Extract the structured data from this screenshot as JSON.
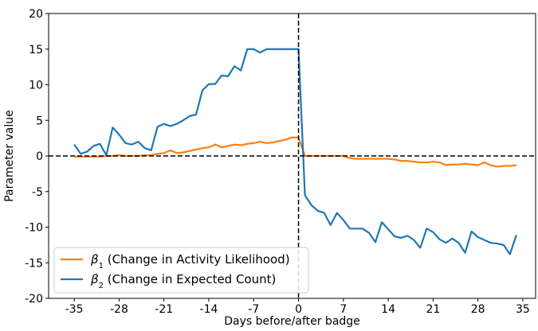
{
  "chart_data": {
    "type": "line",
    "xlabel": "Days before/after badge",
    "ylabel": "Parameter value",
    "xlim": [
      -39,
      37
    ],
    "ylim": [
      -20,
      20
    ],
    "xticks": [
      -35,
      -28,
      -21,
      -14,
      -7,
      0,
      7,
      14,
      21,
      28,
      35
    ],
    "yticks": [
      -20,
      -15,
      -10,
      -5,
      0,
      5,
      10,
      15,
      20
    ],
    "grid": false,
    "legend_position": "lower-left",
    "reference_lines": {
      "horizontal_y": 0,
      "vertical_x": 0,
      "style": "dashed"
    },
    "series": [
      {
        "name": "β1 (Change in Activity Likelihood)",
        "legend_symbol": "β",
        "legend_subscript": "1",
        "legend_rest": " (Change in Activity Likelihood)",
        "color": "#ff7f0e",
        "x": [
          -35,
          -34,
          -33,
          -32,
          -31,
          -30,
          -29,
          -28,
          -27,
          -26,
          -25,
          -24,
          -23,
          -22,
          -21,
          -20,
          -19,
          -18,
          -17,
          -16,
          -15,
          -14,
          -13,
          -12,
          -11,
          -10,
          -9,
          -8,
          -7,
          -6,
          -5,
          -4,
          -3,
          -2,
          -1,
          0,
          1,
          2,
          3,
          4,
          5,
          6,
          7,
          8,
          9,
          10,
          11,
          12,
          13,
          14,
          15,
          16,
          17,
          18,
          19,
          20,
          21,
          22,
          23,
          24,
          25,
          26,
          27,
          28,
          29,
          30,
          31,
          32,
          33,
          34
        ],
        "y": [
          -0.1,
          -0.1,
          -0.1,
          -0.1,
          -0.1,
          0.0,
          0.0,
          0.1,
          0.0,
          0.0,
          0.0,
          0.1,
          0.1,
          0.3,
          0.4,
          0.8,
          0.4,
          0.5,
          0.7,
          0.9,
          1.1,
          1.2,
          1.6,
          1.2,
          1.4,
          1.6,
          1.5,
          1.7,
          1.8,
          2.0,
          1.8,
          1.9,
          2.1,
          2.3,
          2.6,
          2.6,
          0.0,
          0.0,
          0.0,
          0.0,
          0.0,
          0.0,
          0.0,
          -0.3,
          -0.4,
          -0.4,
          -0.4,
          -0.4,
          -0.4,
          -0.4,
          -0.5,
          -0.7,
          -0.7,
          -0.8,
          -0.9,
          -0.9,
          -0.8,
          -0.9,
          -1.3,
          -1.2,
          -1.2,
          -1.1,
          -1.2,
          -1.3,
          -0.9,
          -1.3,
          -1.5,
          -1.4,
          -1.4,
          -1.3
        ]
      },
      {
        "name": "β2 (Change in Expected Count)",
        "legend_symbol": "β",
        "legend_subscript": "2",
        "legend_rest": " (Change in Expected Count)",
        "color": "#1f77b4",
        "x": [
          -35,
          -34,
          -33,
          -32,
          -31,
          -30,
          -29,
          -28,
          -27,
          -26,
          -25,
          -24,
          -23,
          -22,
          -21,
          -20,
          -19,
          -18,
          -17,
          -16,
          -15,
          -14,
          -13,
          -12,
          -11,
          -10,
          -9,
          -8,
          -7,
          -6,
          -5,
          -4,
          -3,
          -2,
          -1,
          0,
          1,
          2,
          3,
          4,
          5,
          6,
          7,
          8,
          9,
          10,
          11,
          12,
          13,
          14,
          15,
          16,
          17,
          18,
          19,
          20,
          21,
          22,
          23,
          24,
          25,
          26,
          27,
          28,
          29,
          30,
          31,
          32,
          33,
          34
        ],
        "y": [
          1.6,
          0.3,
          0.6,
          1.4,
          1.7,
          0.1,
          4.0,
          3.0,
          1.8,
          1.6,
          2.0,
          1.1,
          0.8,
          4.1,
          4.5,
          4.2,
          4.5,
          5.0,
          5.6,
          5.8,
          9.2,
          10.1,
          10.1,
          11.3,
          11.2,
          12.6,
          12.0,
          15.0,
          15.0,
          14.5,
          15.0,
          15.0,
          15.0,
          15.0,
          15.0,
          15.0,
          -5.5,
          -6.9,
          -7.7,
          -8.0,
          -9.7,
          -8.0,
          -9.0,
          -10.2,
          -10.2,
          -10.2,
          -10.8,
          -12.1,
          -9.3,
          -10.3,
          -11.3,
          -11.5,
          -11.2,
          -11.8,
          -12.9,
          -10.2,
          -10.7,
          -11.7,
          -12.2,
          -11.6,
          -12.2,
          -13.6,
          -10.6,
          -11.4,
          -11.8,
          -12.2,
          -12.3,
          -12.5,
          -13.8,
          -11.1
        ]
      }
    ]
  }
}
